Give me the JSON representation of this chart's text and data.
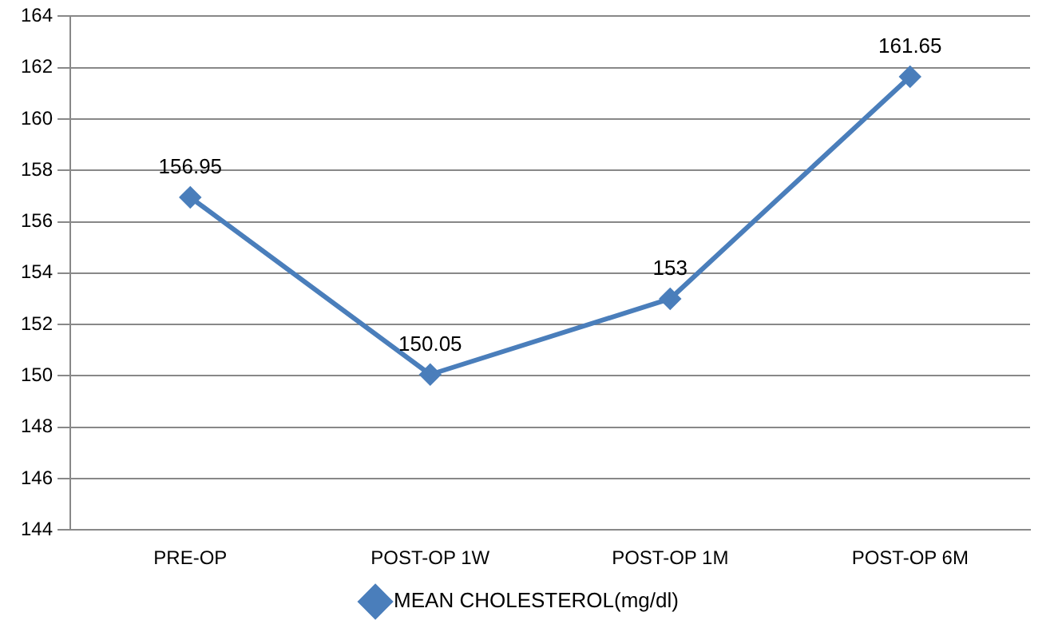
{
  "chart_data": {
    "type": "line",
    "categories": [
      "PRE-OP",
      "POST-OP 1W",
      "POST-OP 1M",
      "POST-OP 6M"
    ],
    "series": [
      {
        "name": "MEAN CHOLESTEROL(mg/dl)",
        "color": "#4a7ebb",
        "values": [
          156.95,
          150.05,
          153,
          161.65
        ]
      }
    ],
    "ylim": [
      144,
      164
    ],
    "yticks": [
      144,
      146,
      148,
      150,
      152,
      154,
      156,
      158,
      160,
      162,
      164
    ],
    "grid": "y",
    "legend": "bottom",
    "marker": "diamond",
    "line_style": "solid",
    "data_labels": true
  }
}
